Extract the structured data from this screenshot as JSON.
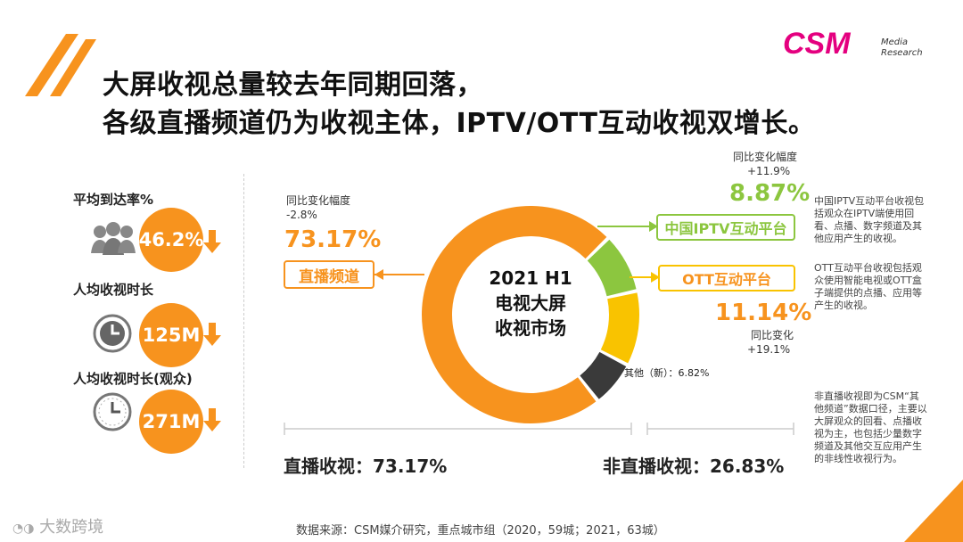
{
  "header": {
    "title_line1": "大屏收视总量较去年同期回落，",
    "title_line2": "各级直播频道仍为收视主体，IPTV/OTT互动收视双增长。",
    "logo_text": "CSM",
    "logo_sub1": "Media",
    "logo_sub2": "Research"
  },
  "kpis": [
    {
      "label": "平均到达率%",
      "value": "46.2%"
    },
    {
      "label": "人均收视时长",
      "value": "125M"
    },
    {
      "label": "人均收视时长(观众)",
      "value": "271M"
    }
  ],
  "colors": {
    "orange": "#f7931e",
    "green": "#8cc63f",
    "yellow": "#f9c300",
    "dark": "#3a3a3a"
  },
  "chart_data": {
    "type": "pie",
    "title": "2021 H1 电视大屏收视市场",
    "center_line1": "2021 H1",
    "center_line2": "电视大屏",
    "center_line3": "收视市场",
    "categories": [
      "直播频道",
      "中国IPTV互动平台",
      "OTT互动平台",
      "其他（新）"
    ],
    "values": [
      73.17,
      8.87,
      11.14,
      6.82
    ],
    "yoy_changes": [
      "-2.8%",
      "+11.9%",
      "+19.1%",
      ""
    ]
  },
  "live": {
    "change_label": "同比变化幅度",
    "change_value": "-2.8%",
    "share": "73.17%",
    "tag": "直播频道"
  },
  "iptv": {
    "change_label": "同比变化幅度",
    "change_value": "+11.9%",
    "share": "8.87%",
    "tag": "中国IPTV互动平台",
    "note": "中国IPTV互动平台收视包括观众在IPTV端使用回看、点播、数字频道及其他应用产生的收视。"
  },
  "ott": {
    "change_label": "同比变化",
    "change_value": "+19.1%",
    "share": "11.14%",
    "tag": "OTT互动平台",
    "note": "OTT互动平台收视包括观众使用智能电视或OTT盒子端提供的点播、应用等产生的收视。"
  },
  "other": {
    "label": "其他（新）：6.82%"
  },
  "summary": {
    "live_total": "直播收视：73.17%",
    "nonlive_total": "非直播收视：26.83%",
    "nonlive_note": "非直播收视即为CSM“其他频道”数据口径，主要以大屏观众的回看、点播收视为主，也包括少量数字频道及其他交互应用产生的非线性收视行为。"
  },
  "footer": {
    "source": "数据来源：CSM媒介研究，重点城市组（2020，59城；2021，63城）",
    "watermark": "大数跨境"
  }
}
